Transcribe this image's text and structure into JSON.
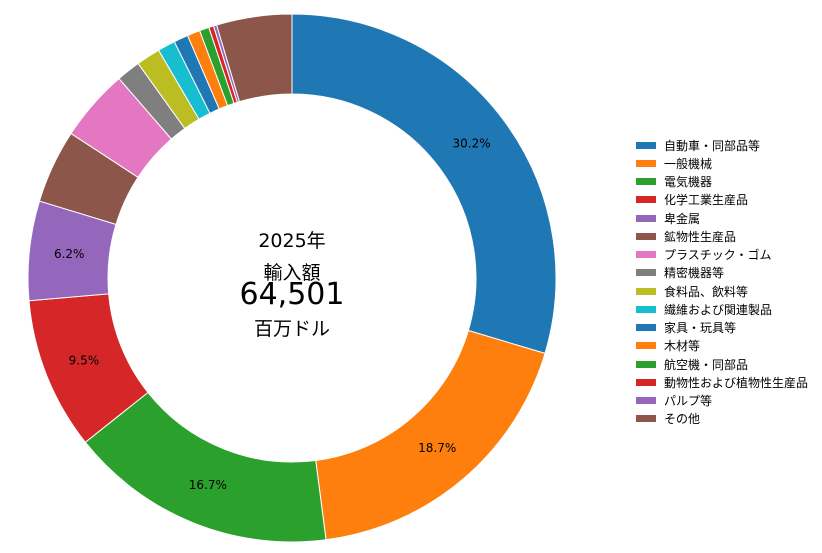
{
  "center": {
    "year": "2025年",
    "title": "輸入額",
    "total": "64,501",
    "unit": "百万ドル"
  },
  "chart_data": {
    "type": "pie",
    "variant": "donut",
    "categories": [
      "自動車・同部品等",
      "一般機械",
      "電気機器",
      "化学工業生産品",
      "卑金属",
      "鉱物性生産品",
      "プラスチック・ゴム",
      "精密機器等",
      "食料品、飲料等",
      "繊維および関連製品",
      "家具・玩具等",
      "木材等",
      "航空機・同部品",
      "動物性および植物性生産品",
      "パルプ等",
      "その他"
    ],
    "values": [
      30.2,
      18.7,
      16.7,
      9.5,
      6.2,
      4.6,
      4.5,
      1.5,
      1.5,
      1.1,
      0.9,
      0.8,
      0.6,
      0.3,
      0.2,
      4.7
    ],
    "labels": [
      "30.2%",
      "18.7%",
      "16.7%",
      "9.5%",
      "6.2%"
    ],
    "colors": [
      "#1f77b4",
      "#ff7f0e",
      "#2ca02c",
      "#d62728",
      "#9467bd",
      "#8c564b",
      "#e377c2",
      "#7f7f7f",
      "#bcbd22",
      "#17becf",
      "#1f77b4",
      "#ff7f0e",
      "#2ca02c",
      "#d62728",
      "#9467bd",
      "#8c564b"
    ],
    "start": "12 o'clock",
    "direction": "clockwise",
    "legend_position": "right"
  }
}
